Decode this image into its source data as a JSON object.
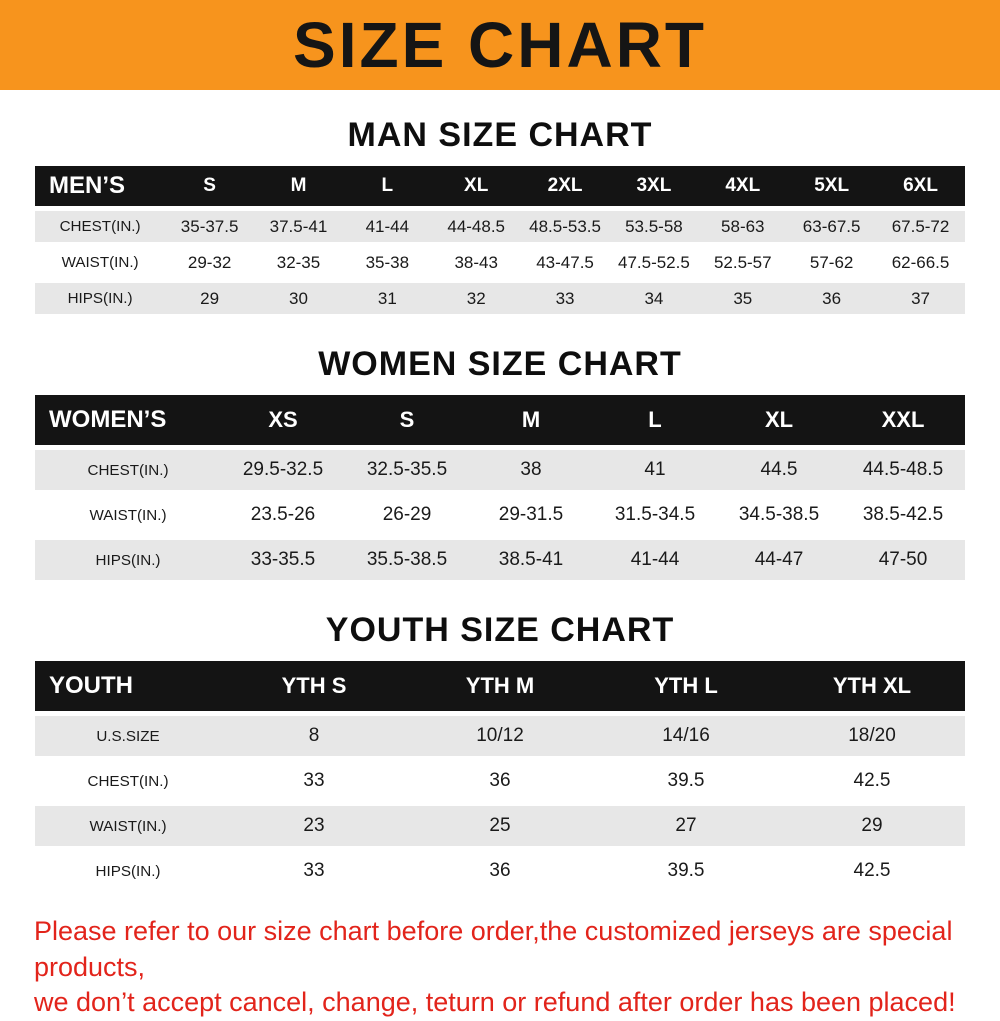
{
  "banner": {
    "title": "SIZE CHART"
  },
  "colors": {
    "banner_bg": "#f7941d",
    "table_header_bg": "#141414",
    "table_row_alt_bg": "#e7e7e7",
    "disclaimer_text": "#e2241b"
  },
  "sections": [
    {
      "heading": "MAN SIZE CHART",
      "table": {
        "header": [
          "MEN’S",
          "S",
          "M",
          "L",
          "XL",
          "2XL",
          "3XL",
          "4XL",
          "5XL",
          "6XL"
        ],
        "rows": [
          [
            "CHEST(IN.)",
            "35-37.5",
            "37.5-41",
            "41-44",
            "44-48.5",
            "48.5-53.5",
            "53.5-58",
            "58-63",
            "63-67.5",
            "67.5-72"
          ],
          [
            "WAIST(IN.)",
            "29-32",
            "32-35",
            "35-38",
            "38-43",
            "43-47.5",
            "47.5-52.5",
            "52.5-57",
            "57-62",
            "62-66.5"
          ],
          [
            "HIPS(IN.)",
            "29",
            "30",
            "31",
            "32",
            "33",
            "34",
            "35",
            "36",
            "37"
          ]
        ]
      }
    },
    {
      "heading": "WOMEN SIZE CHART",
      "table": {
        "header": [
          "WOMEN’S",
          "XS",
          "S",
          "M",
          "L",
          "XL",
          "XXL"
        ],
        "rows": [
          [
            "CHEST(IN.)",
            "29.5-32.5",
            "32.5-35.5",
            "38",
            "41",
            "44.5",
            "44.5-48.5"
          ],
          [
            "WAIST(IN.)",
            "23.5-26",
            "26-29",
            "29-31.5",
            "31.5-34.5",
            "34.5-38.5",
            "38.5-42.5"
          ],
          [
            "HIPS(IN.)",
            "33-35.5",
            "35.5-38.5",
            "38.5-41",
            "41-44",
            "44-47",
            "47-50"
          ]
        ]
      }
    },
    {
      "heading": "YOUTH SIZE CHART",
      "table": {
        "header": [
          "YOUTH",
          "YTH S",
          "YTH M",
          "YTH L",
          "YTH XL"
        ],
        "rows": [
          [
            "U.S.SIZE",
            "8",
            "10/12",
            "14/16",
            "18/20"
          ],
          [
            "CHEST(IN.)",
            "33",
            "36",
            "39.5",
            "42.5"
          ],
          [
            "WAIST(IN.)",
            "23",
            "25",
            "27",
            "29"
          ],
          [
            "HIPS(IN.)",
            "33",
            "36",
            "39.5",
            "42.5"
          ]
        ]
      }
    }
  ],
  "footer": {
    "line1": "Please refer to our size chart before order,the customized jerseys are special products,",
    "line2": "we don’t accept cancel, change, teturn or refund after order has been placed!"
  }
}
